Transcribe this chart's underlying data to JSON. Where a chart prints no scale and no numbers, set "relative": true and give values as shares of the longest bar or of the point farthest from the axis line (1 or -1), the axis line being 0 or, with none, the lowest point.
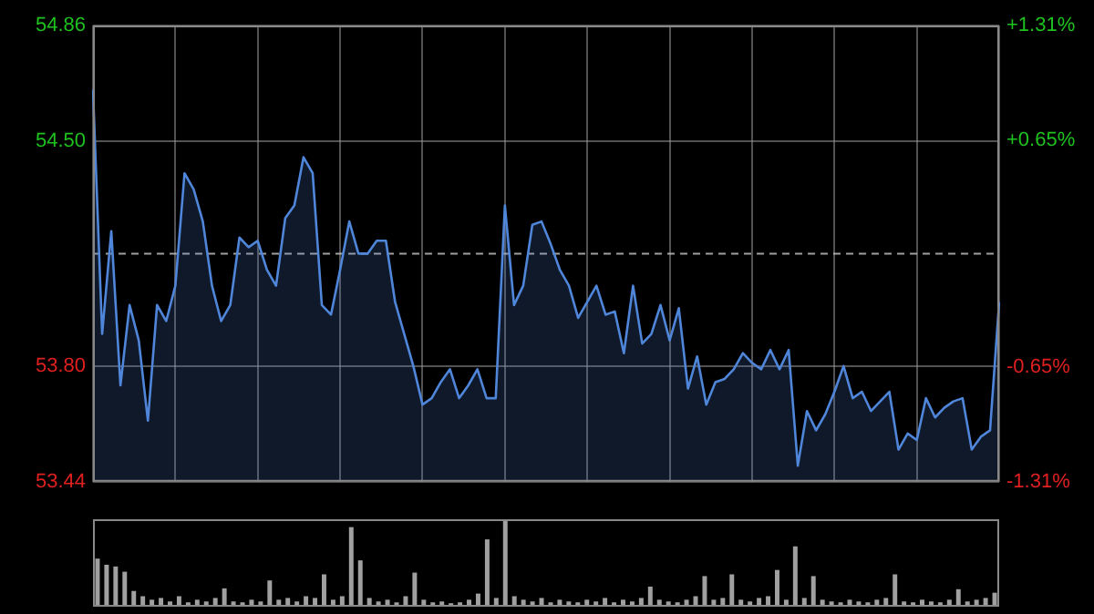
{
  "chart_data": [
    {
      "type": "area",
      "color": "#4f86d9",
      "grid": true,
      "categories": [
        null,
        null,
        null,
        null,
        null,
        null,
        null,
        null,
        null,
        null,
        null,
        null,
        null,
        null,
        null,
        null,
        null,
        null,
        null,
        null,
        null,
        null,
        null,
        null,
        null,
        null,
        null,
        null,
        null,
        null,
        null,
        null,
        null,
        null,
        null,
        null,
        null,
        null,
        null,
        null,
        null,
        null,
        null,
        null,
        null,
        null,
        null,
        null,
        null,
        null,
        null,
        null,
        null,
        null,
        null,
        null,
        null,
        null,
        null,
        null,
        null,
        null,
        null,
        null,
        null,
        null,
        null,
        null,
        null,
        null,
        null,
        null,
        null,
        null,
        null,
        null,
        null,
        null,
        null,
        null,
        null,
        null,
        null,
        null,
        null,
        null,
        null,
        null,
        null,
        null,
        null,
        null,
        null,
        null,
        null,
        null,
        null,
        null,
        null,
        null
      ],
      "values": [
        54.66,
        53.9,
        54.22,
        53.74,
        53.99,
        53.88,
        53.63,
        53.99,
        53.94,
        54.05,
        54.4,
        54.35,
        54.25,
        54.05,
        53.94,
        53.99,
        54.2,
        54.17,
        54.19,
        54.1,
        54.05,
        54.26,
        54.3,
        54.45,
        54.4,
        53.99,
        53.96,
        54.1,
        54.25,
        54.15,
        54.15,
        54.19,
        54.19,
        54.0,
        53.9,
        53.8,
        53.68,
        53.7,
        53.75,
        53.79,
        53.7,
        53.74,
        53.79,
        53.7,
        53.7,
        54.3,
        53.99,
        54.05,
        54.24,
        54.25,
        54.18,
        54.1,
        54.05,
        53.95,
        54.0,
        54.05,
        53.96,
        53.97,
        53.84,
        54.05,
        53.87,
        53.9,
        53.99,
        53.88,
        53.98,
        53.73,
        53.83,
        53.68,
        53.75,
        53.76,
        53.79,
        53.84,
        53.81,
        53.79,
        53.85,
        53.79,
        53.85,
        53.49,
        53.66,
        53.6,
        53.65,
        53.72,
        53.8,
        53.7,
        53.72,
        53.66,
        53.69,
        53.72,
        53.54,
        53.59,
        53.57,
        53.7,
        53.64,
        53.67,
        53.69,
        53.7,
        53.54,
        53.58,
        53.6,
        54.0
      ],
      "ylim": [
        53.44,
        54.86
      ],
      "yticks": [
        54.86,
        {
          "value": 54.5,
          "label": "54.50"
        },
        {
          "value": 53.8,
          "label": "53.80"
        },
        53.44
      ],
      "y2lim": [
        -1.31,
        1.31
      ],
      "y2ticks": [
        {
          "value": 1.31,
          "label": "+1.31%"
        },
        {
          "value": 0.65,
          "label": "+0.65%"
        },
        {
          "value": -0.65,
          "label": "-0.65%"
        },
        {
          "value": -1.31,
          "label": "-1.31%"
        }
      ],
      "ref_lines": [
        {
          "axis": "y",
          "value": 54.15
        }
      ]
    },
    {
      "type": "bar",
      "relative": true,
      "color": "#a0a0a0",
      "categories": [
        null,
        null,
        null,
        null,
        null,
        null,
        null,
        null,
        null,
        null,
        null,
        null,
        null,
        null,
        null,
        null,
        null,
        null,
        null,
        null,
        null,
        null,
        null,
        null,
        null,
        null,
        null,
        null,
        null,
        null,
        null,
        null,
        null,
        null,
        null,
        null,
        null,
        null,
        null,
        null,
        null,
        null,
        null,
        null,
        null,
        null,
        null,
        null,
        null,
        null,
        null,
        null,
        null,
        null,
        null,
        null,
        null,
        null,
        null,
        null,
        null,
        null,
        null,
        null,
        null,
        null,
        null,
        null,
        null,
        null,
        null,
        null,
        null,
        null,
        null,
        null,
        null,
        null,
        null,
        null,
        null,
        null,
        null,
        null,
        null,
        null,
        null,
        null,
        null,
        null,
        null,
        null,
        null,
        null,
        null,
        null,
        null,
        null,
        null,
        null
      ],
      "values": [
        0.55,
        0.48,
        0.46,
        0.4,
        0.18,
        0.12,
        0.08,
        0.1,
        0.06,
        0.12,
        0.05,
        0.08,
        0.06,
        0.1,
        0.21,
        0.06,
        0.05,
        0.08,
        0.06,
        0.3,
        0.08,
        0.1,
        0.06,
        0.12,
        0.1,
        0.37,
        0.08,
        0.12,
        0.91,
        0.53,
        0.1,
        0.06,
        0.08,
        0.05,
        0.12,
        0.39,
        0.08,
        0.05,
        0.06,
        0.04,
        0.05,
        0.08,
        0.15,
        0.77,
        0.1,
        1,
        0.12,
        0.08,
        0.06,
        0.1,
        0.05,
        0.08,
        0.06,
        0.05,
        0.08,
        0.06,
        0.1,
        0.05,
        0.08,
        0.06,
        0.1,
        0.23,
        0.08,
        0.06,
        0.05,
        0.08,
        0.12,
        0.35,
        0.08,
        0.1,
        0.37,
        0.08,
        0.06,
        0.1,
        0.12,
        0.42,
        0.08,
        0.69,
        0.1,
        0.35,
        0.08,
        0.06,
        0.05,
        0.08,
        0.06,
        0.05,
        0.08,
        0.1,
        0.37,
        0.06,
        0.05,
        0.08,
        0.06,
        0.05,
        0.08,
        0.2,
        0.06,
        0.08,
        0.1,
        0.16
      ]
    }
  ]
}
